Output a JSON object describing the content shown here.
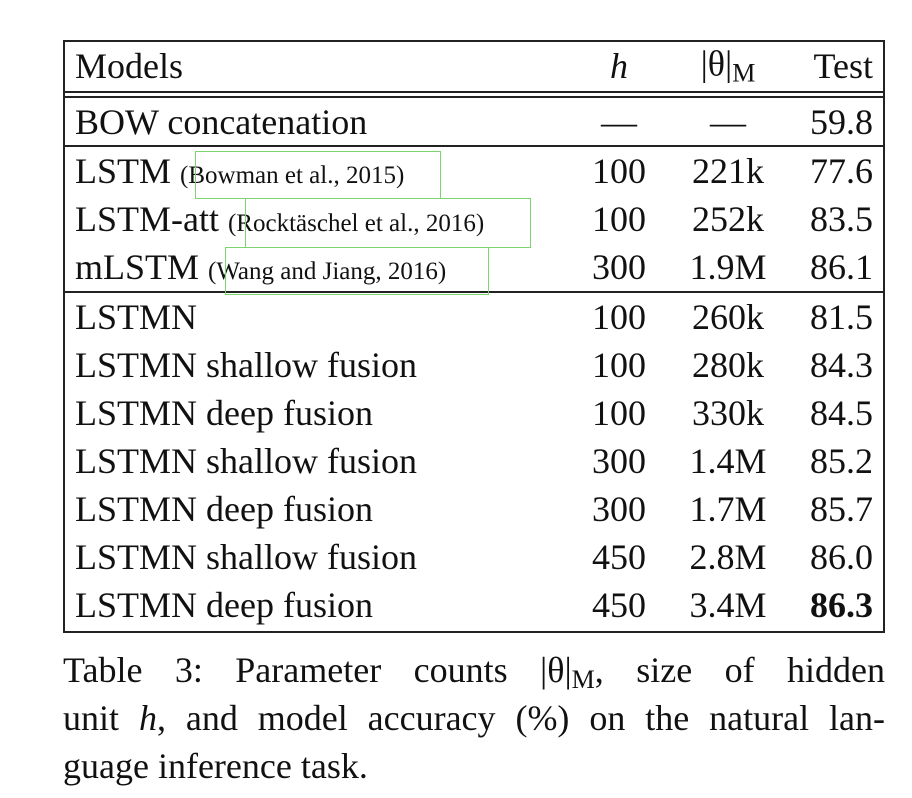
{
  "table": {
    "header": {
      "models": "Models",
      "h": "h",
      "params_pre": "|θ|",
      "params_sub": "M",
      "test": "Test"
    },
    "baseline": {
      "model": "BOW concatenation",
      "h": "—",
      "params": "—",
      "test": "59.8"
    },
    "lstm_rows": [
      {
        "model": "LSTM",
        "cite": "(Bowman et al., 2015)",
        "h": "100",
        "params": "221k",
        "test": "77.6"
      },
      {
        "model": "LSTM-att",
        "cite": "(Rocktäschel et al., 2016)",
        "h": "100",
        "params": "252k",
        "test": "83.5"
      },
      {
        "model": "mLSTM",
        "cite": "(Wang and Jiang, 2016)",
        "h": "300",
        "params": "1.9M",
        "test": "86.1"
      }
    ],
    "lstmn_rows": [
      {
        "model": "LSTMN",
        "h": "100",
        "params": "260k",
        "test": "81.5"
      },
      {
        "model": "LSTMN shallow fusion",
        "h": "100",
        "params": "280k",
        "test": "84.3"
      },
      {
        "model": "LSTMN deep fusion",
        "h": "100",
        "params": "330k",
        "test": "84.5"
      },
      {
        "model": "LSTMN shallow fusion",
        "h": "300",
        "params": "1.4M",
        "test": "85.2"
      },
      {
        "model": "LSTMN deep fusion",
        "h": "300",
        "params": "1.7M",
        "test": "85.7"
      },
      {
        "model": "LSTMN shallow fusion",
        "h": "450",
        "params": "2.8M",
        "test": "86.0"
      },
      {
        "model": "LSTMN deep fusion",
        "h": "450",
        "params": "3.4M",
        "test": "86.3"
      }
    ]
  },
  "caption": {
    "line1_pre": "Table 3:  Parameter counts |θ|",
    "line1_sub": "M",
    "line1_post": ", size of hidden",
    "line2_pre": "unit ",
    "line2_h": "h",
    "line2_post": ", and model accuracy (%) on the natural lan-",
    "line3": "guage inference task."
  }
}
